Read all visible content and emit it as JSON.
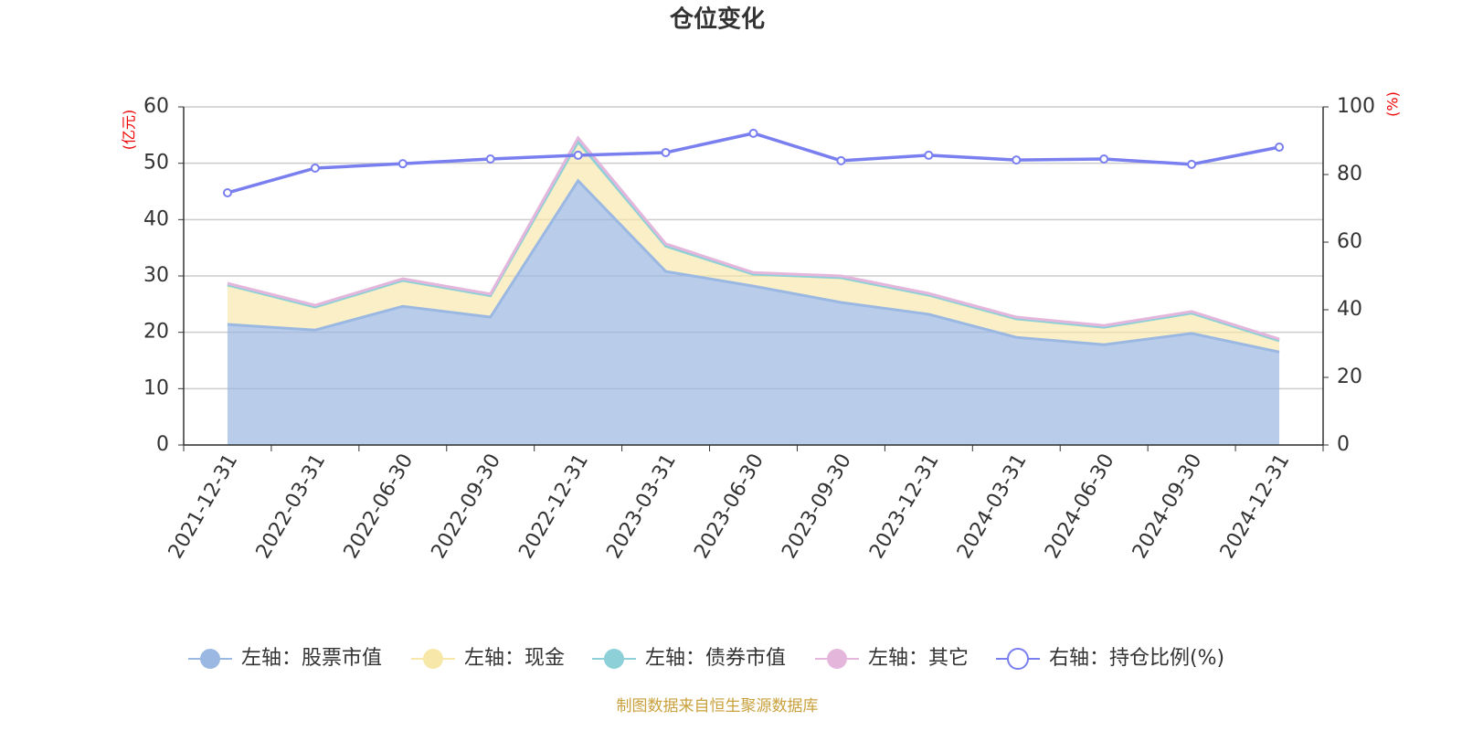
{
  "chart_data": {
    "type": "area",
    "stacked": true,
    "title": "仓位变化",
    "ylabel": "(亿元)",
    "y2label": "(%)",
    "source": "制图数据来自恒生聚源数据库",
    "categories": [
      "2021-12-31",
      "2022-03-31",
      "2022-06-30",
      "2022-09-30",
      "2022-12-31",
      "2023-03-31",
      "2023-06-30",
      "2023-09-30",
      "2023-12-31",
      "2024-03-31",
      "2024-06-30",
      "2024-09-30",
      "2024-12-31"
    ],
    "series": [
      {
        "name": "左轴：股票市值",
        "color": "#9bb8e3",
        "values": [
          21.4,
          20.4,
          24.6,
          22.7,
          46.9,
          30.8,
          28.2,
          25.3,
          23.2,
          19.1,
          17.8,
          19.8,
          16.5
        ]
      },
      {
        "name": "左轴：现金",
        "color": "#f7e7a8",
        "values": [
          7.0,
          4.1,
          4.6,
          3.8,
          6.9,
          4.5,
          2.1,
          4.4,
          3.4,
          3.3,
          3.1,
          3.6,
          2.0
        ]
      },
      {
        "name": "左轴：债券市值",
        "color": "#8ed0d8",
        "values": [
          0,
          0,
          0,
          0,
          0,
          0,
          0,
          0,
          0,
          0,
          0,
          0,
          0
        ]
      },
      {
        "name": "左轴：其它",
        "color": "#e5b6dc",
        "values": [
          0.3,
          0.3,
          0.3,
          0.3,
          0.7,
          0.4,
          0.3,
          0.3,
          0.3,
          0.3,
          0.3,
          0.3,
          0.3
        ]
      },
      {
        "name": "右轴：持仓比例(%)",
        "color": "#7a7ff0",
        "type": "line",
        "axis": "y2",
        "values": [
          74.6,
          81.9,
          83.2,
          84.6,
          85.7,
          86.5,
          92.2,
          84.1,
          85.7,
          84.3,
          84.6,
          83.0,
          88.1
        ]
      }
    ],
    "ylim": [
      0,
      60
    ],
    "yticks": [
      0,
      10,
      20,
      30,
      40,
      50,
      60
    ],
    "y2lim": [
      0,
      100
    ],
    "y2ticks": [
      0,
      20,
      40,
      60,
      80,
      100
    ],
    "grid": true,
    "legend": "bottom"
  }
}
